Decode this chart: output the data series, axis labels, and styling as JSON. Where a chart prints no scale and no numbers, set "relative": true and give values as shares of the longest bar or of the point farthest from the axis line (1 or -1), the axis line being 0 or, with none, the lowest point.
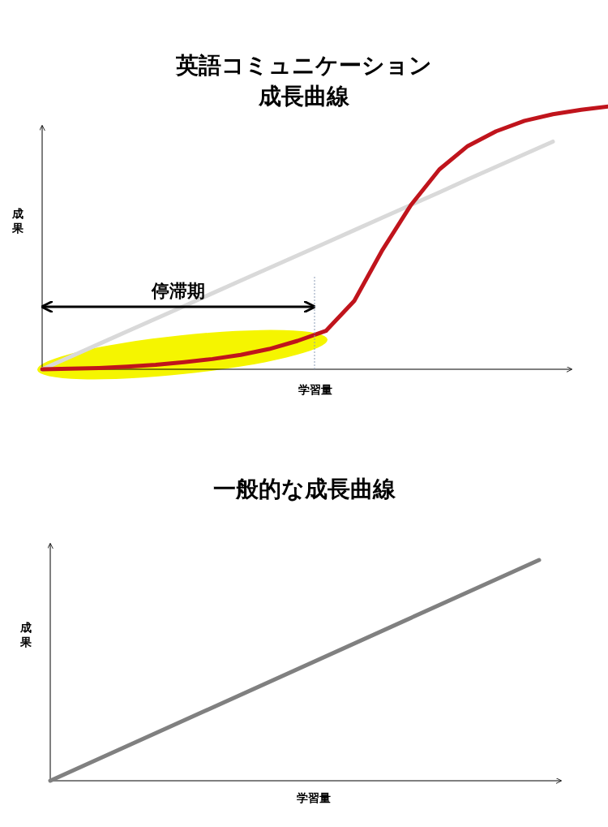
{
  "chart_data": [
    {
      "type": "line",
      "title": "英語コミュニケーション",
      "subtitle": "成長曲線",
      "xlabel": "学習量",
      "ylabel": "成果",
      "relative": true,
      "annotations": [
        "停滞期"
      ],
      "categories": [
        null,
        null,
        null,
        null,
        null,
        null,
        null,
        null,
        null,
        null,
        null,
        null,
        null,
        null,
        null,
        null,
        null,
        null,
        null,
        null,
        null
      ],
      "series": [
        {
          "color": "#d9d9d9",
          "values": [
            0,
            0.048,
            0.096,
            0.144,
            0.192,
            0.24,
            0.289,
            0.337,
            0.385,
            0.433,
            0.481,
            0.529,
            0.577,
            0.625,
            0.673,
            0.722,
            0.77,
            0.818,
            0.866,
            null,
            null
          ]
        },
        {
          "color": "#c0141c",
          "values": [
            0,
            0.002,
            0.005,
            0.01,
            0.017,
            0.027,
            0.039,
            0.055,
            0.077,
            0.108,
            0.146,
            0.26,
            0.455,
            0.625,
            0.76,
            0.849,
            0.905,
            0.945,
            0.97,
            0.987,
            1
          ]
        }
      ]
    },
    {
      "type": "line",
      "title": "一般的な成長曲線",
      "xlabel": "学習量",
      "ylabel": "成果",
      "relative": true,
      "categories": [
        null,
        null
      ],
      "series": [
        {
          "color": "#808080",
          "values": [
            0,
            1
          ]
        }
      ]
    }
  ]
}
